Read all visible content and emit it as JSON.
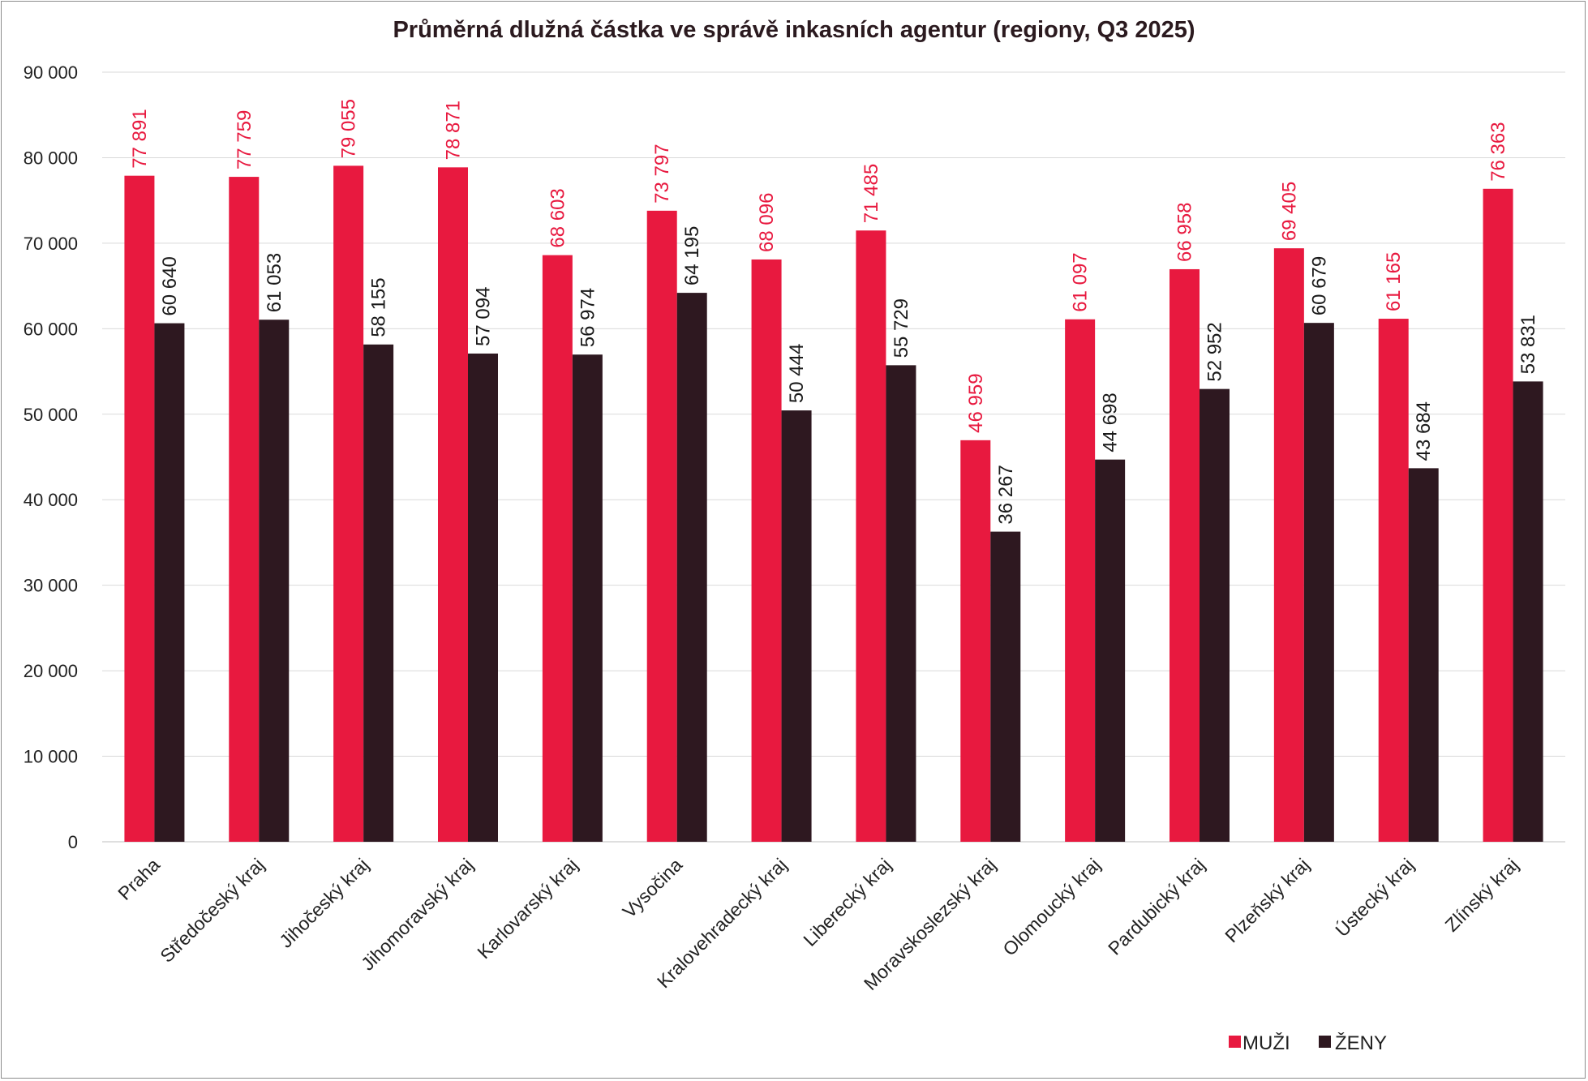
{
  "chart_data": {
    "type": "bar",
    "title": "Průměrná dlužná částka ve správě inkasních agentur (regiony, Q3 2025)",
    "xlabel": "",
    "ylabel": "",
    "ylim": [
      0,
      90000
    ],
    "yticks": [
      0,
      10000,
      20000,
      30000,
      40000,
      50000,
      60000,
      70000,
      80000,
      90000
    ],
    "ytick_labels": [
      "0",
      "10 000",
      "20 000",
      "30 000",
      "40 000",
      "50 000",
      "60 000",
      "70 000",
      "80 000",
      "90 000"
    ],
    "grid": true,
    "legend_position": "bottom-right",
    "categories": [
      "Praha",
      "Středočeský kraj",
      "Jihočeský kraj",
      "Jihomoravský kraj",
      "Karlovarský kraj",
      "Vysočina",
      "Kralovehradecký kraj",
      "Liberecký kraj",
      "Moravskoslezský kraj",
      "Olomoucký kraj",
      "Pardubický kraj",
      "Plzeňský kraj",
      "Ústecký kraj",
      "Zlínský kraj"
    ],
    "series": [
      {
        "name": "MUŽI",
        "color": "#e8193f",
        "values": [
          77891,
          77759,
          79055,
          78871,
          68603,
          73797,
          68096,
          71485,
          46959,
          61097,
          66958,
          69405,
          61165,
          76363
        ],
        "labels": [
          "77 891",
          "77 759",
          "79 055",
          "78 871",
          "68 603",
          "73 797",
          "68 096",
          "71 485",
          "46 959",
          "61 097",
          "66 958",
          "69 405",
          "61 165",
          "76 363"
        ],
        "label_color": "#e8193f"
      },
      {
        "name": "ŽENY",
        "color": "#2e1820",
        "values": [
          60640,
          61053,
          58155,
          57094,
          56974,
          64195,
          50444,
          55729,
          36267,
          44698,
          52952,
          60679,
          43684,
          53831
        ],
        "labels": [
          "60 640",
          "61 053",
          "58 155",
          "57 094",
          "56 974",
          "64 195",
          "50 444",
          "55 729",
          "36 267",
          "44 698",
          "52 952",
          "60 679",
          "43 684",
          "53 831"
        ],
        "label_color": "#1a1a1a"
      }
    ]
  }
}
